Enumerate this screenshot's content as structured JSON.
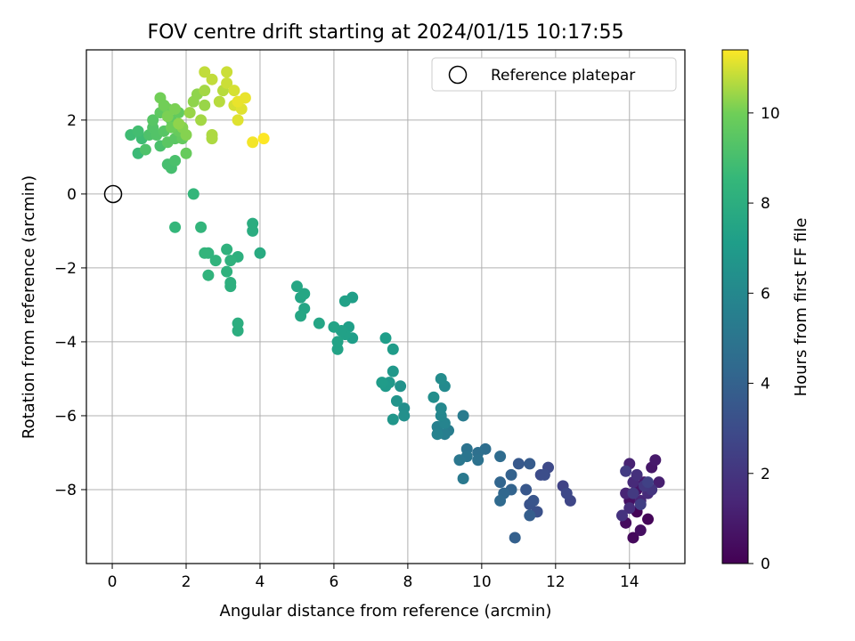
{
  "chart_data": {
    "type": "scatter",
    "title": "FOV centre drift starting at 2024/01/15 10:17:55",
    "xlabel": "Angular distance from reference (arcmin)",
    "ylabel": "Rotation from reference (arcmin)",
    "xlim": [
      -0.7,
      15.5
    ],
    "ylim": [
      -10.0,
      3.9
    ],
    "xticks": [
      0,
      2,
      4,
      6,
      8,
      10,
      12,
      14
    ],
    "yticks": [
      -8,
      -6,
      -4,
      -2,
      0,
      2
    ],
    "grid": true,
    "legend": {
      "position": "top-right",
      "entries": [
        "Reference platepar"
      ]
    },
    "reference_point": {
      "x": 0,
      "y": 0,
      "marker": "open-circle"
    },
    "colorbar": {
      "label": "Hours from first FF file",
      "colormap": "viridis",
      "range": [
        0,
        11.4
      ],
      "ticks": [
        0,
        2,
        4,
        6,
        8,
        10
      ]
    },
    "series": [
      {
        "marker": "filled-circle",
        "points": [
          [
            14.2,
            -8.6,
            0.1
          ],
          [
            14.5,
            -8.8,
            0.2
          ],
          [
            14.1,
            -9.3,
            0.3
          ],
          [
            13.9,
            -8.9,
            0.4
          ],
          [
            14.3,
            -9.1,
            0.5
          ],
          [
            14.0,
            -8.3,
            0.6
          ],
          [
            14.2,
            -8.0,
            0.7
          ],
          [
            14.6,
            -7.4,
            0.8
          ],
          [
            14.7,
            -7.2,
            0.9
          ],
          [
            14.4,
            -7.8,
            1.0
          ],
          [
            14.8,
            -7.8,
            1.1
          ],
          [
            14.0,
            -7.3,
            1.2
          ],
          [
            13.9,
            -8.1,
            1.3
          ],
          [
            14.3,
            -8.3,
            1.4
          ],
          [
            14.1,
            -7.8,
            1.5
          ],
          [
            14.5,
            -8.1,
            1.6
          ],
          [
            14.0,
            -8.5,
            1.7
          ],
          [
            14.2,
            -7.6,
            1.8
          ],
          [
            13.8,
            -8.7,
            1.9
          ],
          [
            14.6,
            -8.0,
            2.0
          ],
          [
            14.4,
            -7.9,
            2.1
          ],
          [
            14.1,
            -8.1,
            2.2
          ],
          [
            13.9,
            -7.5,
            2.3
          ],
          [
            14.3,
            -8.4,
            2.4
          ],
          [
            14.5,
            -7.8,
            2.5
          ],
          [
            12.2,
            -7.9,
            2.6
          ],
          [
            12.4,
            -8.3,
            2.7
          ],
          [
            12.3,
            -8.1,
            2.8
          ],
          [
            11.8,
            -7.4,
            2.9
          ],
          [
            11.6,
            -7.6,
            3.0
          ],
          [
            11.7,
            -7.6,
            3.1
          ],
          [
            11.5,
            -8.6,
            3.2
          ],
          [
            11.3,
            -8.4,
            3.3
          ],
          [
            11.4,
            -8.3,
            3.4
          ],
          [
            11.2,
            -8.0,
            3.5
          ],
          [
            11.0,
            -7.3,
            3.6
          ],
          [
            11.3,
            -7.3,
            3.7
          ],
          [
            11.3,
            -8.7,
            3.8
          ],
          [
            10.9,
            -9.3,
            3.9
          ],
          [
            10.8,
            -7.6,
            4.0
          ],
          [
            10.8,
            -8.0,
            4.1
          ],
          [
            10.5,
            -7.8,
            4.2
          ],
          [
            10.6,
            -8.1,
            4.3
          ],
          [
            10.5,
            -8.3,
            4.4
          ],
          [
            10.5,
            -7.1,
            4.5
          ],
          [
            10.1,
            -6.9,
            4.6
          ],
          [
            9.9,
            -7.0,
            4.7
          ],
          [
            9.9,
            -7.2,
            4.8
          ],
          [
            9.6,
            -6.9,
            4.9
          ],
          [
            9.6,
            -7.1,
            5.0
          ],
          [
            9.4,
            -7.2,
            5.1
          ],
          [
            9.5,
            -7.7,
            5.2
          ],
          [
            9.5,
            -6.0,
            5.3
          ],
          [
            9.1,
            -6.4,
            5.4
          ],
          [
            9.0,
            -6.5,
            5.5
          ],
          [
            8.8,
            -6.3,
            5.6
          ],
          [
            8.8,
            -6.5,
            5.7
          ],
          [
            9.0,
            -6.2,
            5.8
          ],
          [
            8.9,
            -6.0,
            5.9
          ],
          [
            8.9,
            -5.8,
            6.0
          ],
          [
            9.0,
            -5.2,
            6.1
          ],
          [
            8.9,
            -5.0,
            6.2
          ],
          [
            8.7,
            -5.5,
            6.3
          ],
          [
            7.9,
            -5.8,
            6.3
          ],
          [
            7.9,
            -6.0,
            6.4
          ],
          [
            7.8,
            -5.2,
            6.5
          ],
          [
            7.7,
            -5.6,
            6.6
          ],
          [
            7.6,
            -6.1,
            6.7
          ],
          [
            7.6,
            -4.8,
            6.8
          ],
          [
            7.5,
            -5.1,
            6.8
          ],
          [
            7.4,
            -5.2,
            6.9
          ],
          [
            7.3,
            -5.1,
            7.0
          ],
          [
            7.6,
            -4.2,
            7.0
          ],
          [
            7.4,
            -3.9,
            7.1
          ],
          [
            6.5,
            -3.9,
            7.1
          ],
          [
            6.5,
            -2.8,
            7.2
          ],
          [
            6.4,
            -3.6,
            7.2
          ],
          [
            6.3,
            -3.8,
            7.3
          ],
          [
            6.3,
            -2.9,
            7.3
          ],
          [
            6.2,
            -3.7,
            7.3
          ],
          [
            6.1,
            -4.2,
            7.4
          ],
          [
            6.1,
            -4.0,
            7.4
          ],
          [
            6.0,
            -3.6,
            7.4
          ],
          [
            5.6,
            -3.5,
            7.5
          ],
          [
            5.2,
            -3.1,
            7.5
          ],
          [
            5.1,
            -2.8,
            7.5
          ],
          [
            5.2,
            -2.7,
            7.6
          ],
          [
            5.1,
            -3.3,
            7.6
          ],
          [
            5.0,
            -2.5,
            7.6
          ],
          [
            4.0,
            -1.6,
            7.8
          ],
          [
            3.8,
            -1.0,
            7.9
          ],
          [
            3.8,
            -0.8,
            7.9
          ],
          [
            3.4,
            -3.7,
            8.0
          ],
          [
            3.4,
            -3.5,
            8.0
          ],
          [
            3.4,
            -1.7,
            8.1
          ],
          [
            3.2,
            -2.5,
            8.1
          ],
          [
            3.2,
            -2.4,
            8.1
          ],
          [
            3.2,
            -1.8,
            8.2
          ],
          [
            3.1,
            -2.1,
            8.2
          ],
          [
            3.1,
            -1.5,
            8.2
          ],
          [
            2.8,
            -1.8,
            8.3
          ],
          [
            2.6,
            -2.2,
            8.3
          ],
          [
            2.6,
            -1.6,
            8.3
          ],
          [
            2.5,
            -1.6,
            8.4
          ],
          [
            2.4,
            -0.9,
            8.4
          ],
          [
            2.2,
            0.0,
            8.5
          ],
          [
            1.7,
            -0.9,
            8.5
          ],
          [
            0.7,
            1.1,
            8.7
          ],
          [
            0.5,
            1.6,
            8.8
          ],
          [
            0.8,
            1.5,
            8.8
          ],
          [
            0.7,
            1.7,
            8.9
          ],
          [
            1.5,
            0.8,
            9.0
          ],
          [
            1.6,
            0.7,
            9.0
          ],
          [
            1.7,
            0.9,
            9.1
          ],
          [
            1.3,
            1.3,
            9.1
          ],
          [
            0.9,
            1.2,
            9.2
          ],
          [
            1.0,
            1.6,
            9.2
          ],
          [
            1.1,
            1.8,
            9.3
          ],
          [
            1.2,
            1.6,
            9.3
          ],
          [
            1.1,
            2.0,
            9.4
          ],
          [
            1.4,
            1.7,
            9.4
          ],
          [
            1.5,
            1.4,
            9.5
          ],
          [
            1.7,
            1.5,
            9.5
          ],
          [
            1.3,
            2.2,
            9.6
          ],
          [
            1.6,
            2.0,
            9.6
          ],
          [
            1.8,
            2.2,
            9.7
          ],
          [
            1.9,
            1.5,
            9.7
          ],
          [
            2.0,
            1.1,
            9.8
          ],
          [
            1.8,
            1.7,
            9.8
          ],
          [
            1.6,
            1.8,
            9.9
          ],
          [
            1.5,
            2.3,
            9.9
          ],
          [
            1.3,
            2.6,
            10.0
          ],
          [
            1.4,
            2.4,
            10.0
          ],
          [
            1.5,
            2.1,
            10.1
          ],
          [
            1.7,
            2.3,
            10.1
          ],
          [
            1.9,
            1.8,
            10.2
          ],
          [
            2.0,
            1.6,
            10.2
          ],
          [
            1.8,
            1.9,
            10.3
          ],
          [
            2.2,
            2.5,
            10.3
          ],
          [
            2.3,
            2.7,
            10.3
          ],
          [
            2.5,
            2.4,
            10.4
          ],
          [
            2.1,
            2.2,
            10.4
          ],
          [
            2.4,
            2.0,
            10.5
          ],
          [
            2.5,
            2.8,
            10.5
          ],
          [
            2.7,
            1.6,
            10.6
          ],
          [
            2.7,
            1.5,
            10.6
          ],
          [
            2.9,
            2.5,
            10.7
          ],
          [
            3.0,
            2.8,
            10.7
          ],
          [
            2.7,
            3.1,
            10.8
          ],
          [
            2.5,
            3.3,
            10.8
          ],
          [
            3.1,
            3.3,
            10.9
          ],
          [
            3.1,
            3.0,
            10.9
          ],
          [
            3.3,
            2.4,
            11.0
          ],
          [
            3.3,
            2.8,
            11.0
          ],
          [
            3.4,
            2.0,
            11.1
          ],
          [
            3.5,
            2.3,
            11.1
          ],
          [
            3.6,
            2.6,
            11.2
          ],
          [
            3.4,
            2.5,
            11.2
          ],
          [
            3.8,
            1.4,
            11.3
          ],
          [
            4.1,
            1.5,
            11.4
          ]
        ]
      }
    ]
  }
}
